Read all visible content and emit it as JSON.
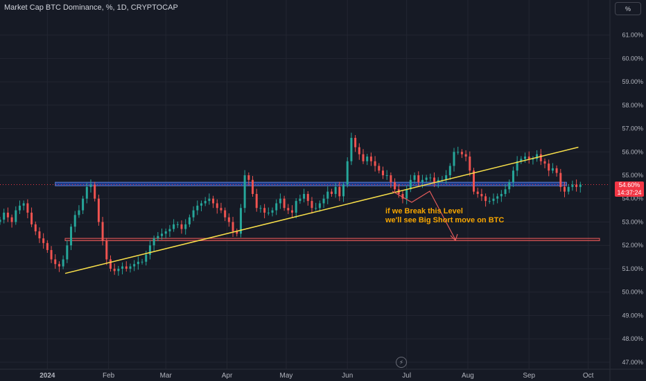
{
  "header": {
    "title": "Market Cap BTC Dominance, %, 1D, CRYPTOCAP",
    "scale_label": "%"
  },
  "annotation": {
    "line1": "if we Break this Level",
    "line2": "we'll see Big Short move on BTC"
  },
  "price_tag": {
    "value": "54.60%",
    "countdown": "14:37:24"
  },
  "colors": {
    "background": "#161a25",
    "up": "#26a69a",
    "down": "#ef5350",
    "trendline": "#f9e04a",
    "support_zone": "#2962ff",
    "target_zone": "#e45b5b",
    "annotation": "#f7a600",
    "last_price": "#f23645"
  },
  "icons": {
    "bolt": "lightning-bolt-icon"
  },
  "chart_data": {
    "type": "candlestick",
    "title": "Market Cap BTC Dominance, %, 1D, CRYPTOCAP",
    "y_unit": "%",
    "ylim": [
      46.7,
      62.5
    ],
    "y_ticks": [
      "47.00%",
      "48.00%",
      "49.00%",
      "50.00%",
      "51.00%",
      "52.00%",
      "53.00%",
      "54.00%",
      "55.00%",
      "56.00%",
      "57.00%",
      "58.00%",
      "59.00%",
      "60.00%",
      "61.00%"
    ],
    "y_tick_values": [
      47,
      48,
      49,
      50,
      51,
      52,
      53,
      54,
      55,
      56,
      57,
      58,
      59,
      60,
      61
    ],
    "x_range": [
      "2023-12-08",
      "2024-10-12"
    ],
    "x_ticks": [
      {
        "label": "2024",
        "date": "2024-01-01"
      },
      {
        "label": "Feb",
        "date": "2024-02-01"
      },
      {
        "label": "Mar",
        "date": "2024-03-01"
      },
      {
        "label": "Apr",
        "date": "2024-04-01"
      },
      {
        "label": "May",
        "date": "2024-05-01"
      },
      {
        "label": "Jun",
        "date": "2024-06-01"
      },
      {
        "label": "Jul",
        "date": "2024-07-01"
      },
      {
        "label": "Aug",
        "date": "2024-08-01"
      },
      {
        "label": "Sep",
        "date": "2024-09-01"
      },
      {
        "label": "Oct",
        "date": "2024-10-01"
      }
    ],
    "start_date": "2023-12-08",
    "close_path": [
      53.1,
      53.4,
      53.2,
      53.0,
      53.5,
      53.7,
      53.8,
      53.4,
      52.9,
      52.6,
      52.3,
      52.1,
      51.8,
      51.4,
      51.2,
      51.1,
      51.4,
      52.0,
      52.8,
      53.3,
      53.5,
      54.0,
      54.5,
      54.6,
      54.0,
      53.0,
      52.2,
      51.4,
      51.0,
      50.9,
      51.0,
      51.1,
      51.0,
      51.1,
      51.2,
      51.3,
      51.3,
      51.6,
      52.0,
      52.3,
      52.4,
      52.5,
      52.6,
      52.7,
      52.9,
      52.9,
      52.7,
      52.9,
      53.2,
      53.5,
      53.7,
      53.8,
      53.9,
      54.0,
      53.8,
      53.6,
      53.5,
      53.2,
      53.0,
      52.6,
      52.5,
      53.6,
      55.0,
      54.8,
      54.2,
      53.6,
      53.6,
      53.4,
      53.4,
      53.5,
      53.8,
      54.0,
      53.6,
      53.5,
      53.4,
      53.9,
      54.0,
      54.2,
      53.9,
      53.6,
      53.6,
      53.8,
      54.0,
      54.3,
      54.2,
      54.5,
      54.1,
      54.6,
      55.6,
      56.6,
      56.2,
      55.9,
      55.6,
      55.8,
      55.6,
      55.4,
      55.2,
      55.0,
      55.0,
      54.7,
      54.4,
      54.2,
      54.0,
      54.4,
      54.8,
      55.0,
      54.7,
      54.8,
      54.9,
      54.9,
      54.7,
      54.8,
      54.8,
      55.0,
      55.4,
      56.0,
      56.0,
      55.9,
      55.8,
      55.2,
      54.3,
      54.2,
      54.1,
      53.9,
      53.9,
      54.0,
      54.1,
      54.2,
      54.4,
      54.7,
      55.2,
      55.6,
      55.7,
      55.8,
      55.7,
      55.7,
      55.9,
      55.6,
      55.5,
      55.2,
      55.3,
      55.1,
      54.5,
      54.3,
      54.5,
      54.6,
      54.5,
      54.6
    ],
    "support_zone": {
      "low": 54.55,
      "high": 54.7,
      "from": "2024-01-05",
      "to": "2024-09-20"
    },
    "target_zone": {
      "low": 52.2,
      "high": 52.3,
      "from": "2024-01-10",
      "to": "2024-10-12"
    },
    "trendline": {
      "from": {
        "date": "2024-01-10",
        "value": 50.8
      },
      "to": {
        "date": "2024-09-26",
        "value": 56.2
      }
    },
    "last_price": 54.6
  }
}
